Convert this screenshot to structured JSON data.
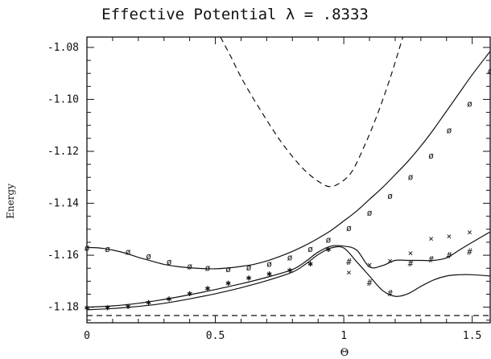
{
  "chart_data": {
    "type": "line",
    "title": "Effective Potential λ = .8333",
    "xlabel": "Θ",
    "ylabel": "Energy",
    "xlim": [
      0,
      1.57
    ],
    "ylim": [
      -1.186,
      -1.076
    ],
    "grid": false,
    "x_ticks": [
      0,
      0.5,
      1,
      1.5
    ],
    "x_tick_labels": [
      "0",
      "0.5",
      "1",
      "1.5"
    ],
    "y_ticks": [
      -1.18,
      -1.16,
      -1.14,
      -1.12,
      -1.1,
      -1.08
    ],
    "y_tick_labels": [
      "-1.18",
      "-1.16",
      "-1.14",
      "-1.12",
      "-1.10",
      "-1.08"
    ],
    "series": [
      {
        "style": "solid",
        "marker": "ø",
        "x": [
          0,
          0.05,
          0.1,
          0.15,
          0.2,
          0.25,
          0.3,
          0.35,
          0.4,
          0.45,
          0.5,
          0.55,
          0.6,
          0.65,
          0.7,
          0.75,
          0.8,
          0.85,
          0.9,
          0.95,
          1.0,
          1.05,
          1.1,
          1.15,
          1.2,
          1.25,
          1.3,
          1.35,
          1.4,
          1.45,
          1.5,
          1.57
        ],
        "y": [
          -1.157,
          -1.1572,
          -1.158,
          -1.1592,
          -1.1608,
          -1.1622,
          -1.1635,
          -1.1643,
          -1.1648,
          -1.1651,
          -1.1652,
          -1.1649,
          -1.1643,
          -1.1635,
          -1.1622,
          -1.1605,
          -1.1585,
          -1.1562,
          -1.1535,
          -1.1505,
          -1.1468,
          -1.143,
          -1.1385,
          -1.134,
          -1.129,
          -1.1238,
          -1.118,
          -1.1115,
          -1.1045,
          -1.0975,
          -1.0905,
          -1.0815
        ],
        "markers_x": [
          0,
          0.08,
          0.16,
          0.24,
          0.32,
          0.4,
          0.47,
          0.55,
          0.63,
          0.71,
          0.79,
          0.87,
          0.94,
          1.02,
          1.1,
          1.18,
          1.26,
          1.34,
          1.41,
          1.49,
          1.57
        ],
        "markers_y": [
          -1.157,
          -1.1575,
          -1.1585,
          -1.1603,
          -1.1625,
          -1.1642,
          -1.1648,
          -1.1652,
          -1.1646,
          -1.1632,
          -1.1608,
          -1.1575,
          -1.154,
          -1.1495,
          -1.1435,
          -1.137,
          -1.1297,
          -1.1215,
          -1.1118,
          -1.1015,
          -1.089
        ]
      },
      {
        "style": "solid",
        "marker": "*",
        "x": [
          0,
          0.1,
          0.2,
          0.3,
          0.4,
          0.5,
          0.6,
          0.7,
          0.8,
          0.85,
          0.9,
          0.95,
          1.0,
          1.05,
          1.1,
          1.15,
          1.2,
          1.25,
          1.3,
          1.35,
          1.4,
          1.45,
          1.5,
          1.57
        ],
        "y": [
          -1.18,
          -1.1795,
          -1.1785,
          -1.177,
          -1.1752,
          -1.1732,
          -1.171,
          -1.1685,
          -1.1655,
          -1.1625,
          -1.1588,
          -1.1565,
          -1.1565,
          -1.158,
          -1.1645,
          -1.164,
          -1.162,
          -1.162,
          -1.162,
          -1.162,
          -1.161,
          -1.158,
          -1.155,
          -1.151
        ]
      },
      {
        "style": "solid",
        "marker": "",
        "x": [
          0,
          0.1,
          0.2,
          0.3,
          0.4,
          0.5,
          0.6,
          0.7,
          0.8,
          0.85,
          0.9,
          0.95,
          1.0,
          1.05,
          1.1,
          1.15,
          1.2,
          1.25,
          1.3,
          1.35,
          1.4,
          1.45,
          1.5,
          1.57
        ],
        "y": [
          -1.181,
          -1.1805,
          -1.1797,
          -1.1785,
          -1.1768,
          -1.1748,
          -1.1725,
          -1.1698,
          -1.1665,
          -1.1635,
          -1.1598,
          -1.1572,
          -1.1572,
          -1.1625,
          -1.168,
          -1.1735,
          -1.1758,
          -1.1748,
          -1.172,
          -1.1695,
          -1.168,
          -1.1675,
          -1.1675,
          -1.168
        ]
      },
      {
        "style": "dashed",
        "marker": "",
        "x": [
          0.52,
          0.56,
          0.6,
          0.65,
          0.7,
          0.75,
          0.8,
          0.85,
          0.9,
          0.94,
          0.98,
          1.03,
          1.08,
          1.13,
          1.18,
          1.23
        ],
        "y": [
          -1.076,
          -1.0835,
          -1.0915,
          -1.1,
          -1.108,
          -1.1155,
          -1.122,
          -1.1275,
          -1.1315,
          -1.1335,
          -1.1325,
          -1.128,
          -1.118,
          -1.106,
          -1.092,
          -1.076
        ]
      },
      {
        "style": "dashed",
        "marker": "",
        "x": [
          0,
          1.57
        ],
        "y": [
          -1.1832,
          -1.1832
        ]
      }
    ],
    "scatter": [
      {
        "marker": "*",
        "x": [
          0,
          0.08,
          0.16,
          0.24,
          0.32,
          0.4,
          0.47,
          0.55,
          0.63,
          0.71,
          0.79,
          0.87,
          0.94
        ],
        "y": [
          -1.18,
          -1.18,
          -1.1795,
          -1.178,
          -1.1765,
          -1.1745,
          -1.1725,
          -1.1705,
          -1.1685,
          -1.167,
          -1.1655,
          -1.163,
          -1.1575
        ]
      },
      {
        "marker": "x",
        "x": [
          1.02,
          1.1,
          1.18,
          1.26,
          1.34,
          1.41,
          1.49
        ],
        "y": [
          -1.1665,
          -1.1635,
          -1.162,
          -1.159,
          -1.1535,
          -1.1525,
          -1.151
        ]
      },
      {
        "marker": "#",
        "x": [
          1.02,
          1.1,
          1.18,
          1.26,
          1.34,
          1.41,
          1.49
        ],
        "y": [
          -1.1625,
          -1.1705,
          -1.1745,
          -1.163,
          -1.1615,
          -1.16,
          -1.1585
        ]
      }
    ]
  }
}
